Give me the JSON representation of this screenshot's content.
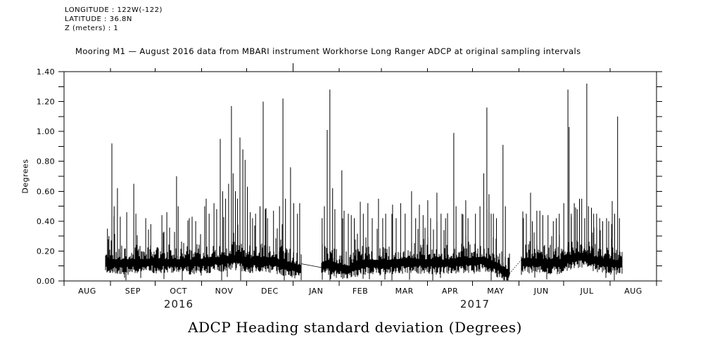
{
  "header": {
    "longitude": "LONGITUDE : 122W(-122)",
    "latitude": "LATITUDE : 36.8N",
    "z": "Z (meters) : 1"
  },
  "chart_data": {
    "type": "line",
    "title": "Mooring M1 — August 2016 data from MBARI instrument Workhorse Long Ranger ADCP at original sampling intervals",
    "caption": "ADCP Heading standard deviation (Degrees)",
    "ylabel": "Degrees",
    "ylim": [
      0.0,
      1.4
    ],
    "ytick_labels": [
      "0.00",
      "0.20",
      "0.40",
      "0.60",
      "0.80",
      "1.00",
      "1.20",
      "1.40"
    ],
    "ytick_step": 0.2,
    "yminor_step": 0.1,
    "grid": false,
    "line_color": "#000000",
    "background": "#ffffff",
    "x_axis": {
      "unit": "days since 2016-08-01",
      "total_days": 396,
      "months": [
        {
          "label": "AUG",
          "days": 31
        },
        {
          "label": "SEP",
          "days": 30
        },
        {
          "label": "OCT",
          "days": 31
        },
        {
          "label": "NOV",
          "days": 30
        },
        {
          "label": "DEC",
          "days": 31
        },
        {
          "label": "JAN",
          "days": 31
        },
        {
          "label": "FEB",
          "days": 28
        },
        {
          "label": "MAR",
          "days": 31
        },
        {
          "label": "APR",
          "days": 30
        },
        {
          "label": "MAY",
          "days": 31
        },
        {
          "label": "JUN",
          "days": 30
        },
        {
          "label": "JUL",
          "days": 31
        },
        {
          "label": "AUG",
          "days": 31
        }
      ],
      "years": [
        {
          "label": "2016",
          "start_day": 0,
          "end_day": 153
        },
        {
          "label": "2017",
          "start_day": 153,
          "end_day": 396
        }
      ]
    },
    "series": [
      {
        "name": "ADCP heading standard deviation",
        "start_day": 27.7,
        "end_day": 373.4,
        "noise_seed": 42,
        "baseline_points": [
          [
            28,
            0.13
          ],
          [
            40,
            0.12
          ],
          [
            60,
            0.13
          ],
          [
            80,
            0.12
          ],
          [
            95,
            0.13
          ],
          [
            105,
            0.14
          ],
          [
            115,
            0.15
          ],
          [
            125,
            0.13
          ],
          [
            135,
            0.14
          ],
          [
            145,
            0.12
          ],
          [
            152,
            0.1
          ],
          [
            158,
            0.08
          ],
          [
            172,
            0.1
          ],
          [
            176,
            0.12
          ],
          [
            182,
            0.1
          ],
          [
            190,
            0.08
          ],
          [
            200,
            0.12
          ],
          [
            215,
            0.12
          ],
          [
            232,
            0.13
          ],
          [
            250,
            0.12
          ],
          [
            265,
            0.13
          ],
          [
            280,
            0.14
          ],
          [
            290,
            0.1
          ],
          [
            296,
            0.05
          ],
          [
            306,
            0.13
          ],
          [
            315,
            0.13
          ],
          [
            330,
            0.12
          ],
          [
            340,
            0.16
          ],
          [
            348,
            0.17
          ],
          [
            355,
            0.14
          ],
          [
            365,
            0.12
          ],
          [
            373,
            0.12
          ]
        ],
        "gaps": [
          {
            "start_day": 158.5,
            "end_day": 172.0,
            "v_start": 0.115,
            "v_end": 0.09,
            "style": "solid"
          },
          {
            "start_day": 297.8,
            "end_day": 305.5,
            "v_start": 0.05,
            "v_end": 0.14,
            "style": "dashed"
          }
        ],
        "spikes": [
          [
            29,
            0.35
          ],
          [
            30,
            0.3
          ],
          [
            32,
            0.92
          ],
          [
            33.5,
            0.5
          ],
          [
            35.7,
            0.62
          ],
          [
            37.6,
            0.43
          ],
          [
            41.9,
            0.46
          ],
          [
            46.6,
            0.65
          ],
          [
            48,
            0.45
          ],
          [
            54.6,
            0.42
          ],
          [
            58,
            0.38
          ],
          [
            65.4,
            0.44
          ],
          [
            68.7,
            0.46
          ],
          [
            75.2,
            0.7
          ],
          [
            76.3,
            0.5
          ],
          [
            83.7,
            0.42
          ],
          [
            85.6,
            0.43
          ],
          [
            88,
            0.4
          ],
          [
            94,
            0.5
          ],
          [
            95,
            0.55
          ],
          [
            97,
            0.45
          ],
          [
            100.2,
            0.52
          ],
          [
            102,
            0.48
          ],
          [
            104.4,
            0.95
          ],
          [
            106,
            0.6
          ],
          [
            108,
            0.55
          ],
          [
            110,
            0.65
          ],
          [
            111.9,
            1.17
          ],
          [
            113,
            0.72
          ],
          [
            114.5,
            0.6
          ],
          [
            116,
            0.55
          ],
          [
            117.6,
            0.96
          ],
          [
            119.5,
            0.88
          ],
          [
            121,
            0.81
          ],
          [
            122.5,
            0.63
          ],
          [
            124.5,
            0.46
          ],
          [
            126,
            0.42
          ],
          [
            128,
            0.45
          ],
          [
            131,
            0.5
          ],
          [
            133.1,
            1.2
          ],
          [
            134.5,
            0.48
          ],
          [
            136,
            0.42
          ],
          [
            140,
            0.47
          ],
          [
            144,
            0.5
          ],
          [
            146.3,
            1.22
          ],
          [
            148,
            0.55
          ],
          [
            151.4,
            0.76
          ],
          [
            153.5,
            0.52
          ],
          [
            156,
            0.45
          ],
          [
            157.5,
            0.52
          ],
          [
            172.5,
            0.42
          ],
          [
            174,
            0.5
          ],
          [
            175.9,
            1.01
          ],
          [
            177.7,
            1.28
          ],
          [
            179.5,
            0.62
          ],
          [
            181,
            0.48
          ],
          [
            185.7,
            0.74
          ],
          [
            187.2,
            0.47
          ],
          [
            190,
            0.45
          ],
          [
            192,
            0.44
          ],
          [
            194,
            0.42
          ],
          [
            198,
            0.53
          ],
          [
            200,
            0.45
          ],
          [
            203.1,
            0.52
          ],
          [
            206,
            0.42
          ],
          [
            210.2,
            0.55
          ],
          [
            213,
            0.42
          ],
          [
            215,
            0.45
          ],
          [
            219.6,
            0.51
          ],
          [
            222,
            0.42
          ],
          [
            225,
            0.52
          ],
          [
            228,
            0.45
          ],
          [
            232.3,
            0.6
          ],
          [
            235,
            0.42
          ],
          [
            237.5,
            0.51
          ],
          [
            240,
            0.44
          ],
          [
            243.1,
            0.54
          ],
          [
            245,
            0.42
          ],
          [
            249.2,
            0.59
          ],
          [
            252,
            0.45
          ],
          [
            255,
            0.42
          ],
          [
            260.5,
            0.99
          ],
          [
            262,
            0.5
          ],
          [
            266,
            0.45
          ],
          [
            268.5,
            0.54
          ],
          [
            270,
            0.42
          ],
          [
            275,
            0.45
          ],
          [
            278,
            0.5
          ],
          [
            280.5,
            0.72
          ],
          [
            282.6,
            1.16
          ],
          [
            284,
            0.58
          ],
          [
            287,
            0.45
          ],
          [
            289,
            0.42
          ],
          [
            293.4,
            0.91
          ],
          [
            295,
            0.5
          ],
          [
            307,
            0.42
          ],
          [
            309,
            0.45
          ],
          [
            311.8,
            0.59
          ],
          [
            313,
            0.4
          ],
          [
            316,
            0.47
          ],
          [
            318,
            0.47
          ],
          [
            320,
            0.44
          ],
          [
            323.5,
            0.44
          ],
          [
            327,
            0.4
          ],
          [
            329,
            0.42
          ],
          [
            331,
            0.45
          ],
          [
            334,
            0.52
          ],
          [
            336.8,
            1.28
          ],
          [
            337.6,
            1.03
          ],
          [
            339,
            0.45
          ],
          [
            341,
            0.52
          ],
          [
            343,
            0.48
          ],
          [
            344.5,
            0.55
          ],
          [
            346,
            0.55
          ],
          [
            348,
            0.42
          ],
          [
            349.4,
            1.32
          ],
          [
            350.5,
            0.5
          ],
          [
            352.5,
            0.49
          ],
          [
            354,
            0.45
          ],
          [
            356,
            0.45
          ],
          [
            358,
            0.42
          ],
          [
            360,
            0.4
          ],
          [
            362.6,
            0.42
          ],
          [
            364,
            0.4
          ],
          [
            366,
            0.38
          ],
          [
            368,
            0.45
          ],
          [
            370,
            1.1
          ],
          [
            371.2,
            0.42
          ]
        ]
      }
    ]
  }
}
